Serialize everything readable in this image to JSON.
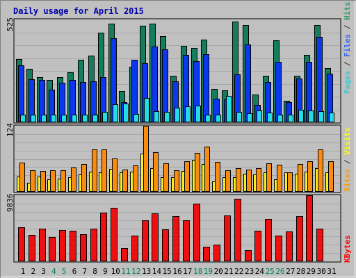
{
  "chart_data": {
    "type": "bar",
    "title": "Daily usage for April 2015",
    "days": [
      {
        "label": "1",
        "weekend": false
      },
      {
        "label": "2",
        "weekend": false
      },
      {
        "label": "3",
        "weekend": false
      },
      {
        "label": "4",
        "weekend": true
      },
      {
        "label": "5",
        "weekend": true
      },
      {
        "label": "6",
        "weekend": false
      },
      {
        "label": "7",
        "weekend": false
      },
      {
        "label": "8",
        "weekend": false
      },
      {
        "label": "9",
        "weekend": false
      },
      {
        "label": "10",
        "weekend": false
      },
      {
        "label": "11",
        "weekend": true
      },
      {
        "label": "12",
        "weekend": true
      },
      {
        "label": "13",
        "weekend": false
      },
      {
        "label": "14",
        "weekend": false
      },
      {
        "label": "15",
        "weekend": false
      },
      {
        "label": "16",
        "weekend": false
      },
      {
        "label": "17",
        "weekend": false
      },
      {
        "label": "18",
        "weekend": true
      },
      {
        "label": "19",
        "weekend": true
      },
      {
        "label": "20",
        "weekend": false
      },
      {
        "label": "21",
        "weekend": false
      },
      {
        "label": "22",
        "weekend": false
      },
      {
        "label": "23",
        "weekend": false
      },
      {
        "label": "24",
        "weekend": false
      },
      {
        "label": "25",
        "weekend": true
      },
      {
        "label": "26",
        "weekend": true
      },
      {
        "label": "27",
        "weekend": false
      },
      {
        "label": "28",
        "weekend": false
      },
      {
        "label": "29",
        "weekend": false
      },
      {
        "label": "30",
        "weekend": false
      },
      {
        "label": "31",
        "weekend": false
      }
    ],
    "panels": [
      {
        "ymax_label": "525",
        "ymax": 525,
        "legend": [
          {
            "text": "Pages",
            "color": "#33cccc"
          },
          {
            "text": " / ",
            "color": "#333333"
          },
          {
            "text": "Files",
            "color": "#3366ff"
          },
          {
            "text": " / ",
            "color": "#333333"
          },
          {
            "text": "Hits",
            "color": "#339966"
          }
        ],
        "series": [
          {
            "name": "Hits",
            "color": "#137d5d",
            "values": [
              324,
              274,
              231,
              216,
              231,
              256,
              318,
              340,
              459,
              505,
              159,
              284,
              492,
              505,
              440,
              236,
              390,
              381,
              421,
              172,
              163,
              513,
              497,
              143,
              237,
              418,
              109,
              239,
              343,
              497,
              276
            ]
          },
          {
            "name": "Files",
            "color": "#0b37ee",
            "values": [
              292,
              220,
              217,
              168,
              201,
              216,
              204,
              211,
              231,
              428,
              102,
              318,
              302,
              386,
              372,
              208,
              345,
              312,
              346,
              120,
              117,
              246,
              399,
              88,
              206,
              310,
              103,
              224,
              310,
              438,
              248
            ]
          },
          {
            "name": "Pages",
            "color": "#22dde8",
            "values": [
              40,
              40,
              40,
              40,
              40,
              40,
              40,
              40,
              54,
              92,
              96,
              43,
              124,
              57,
              53,
              73,
              83,
              86,
              40,
              40,
              136,
              52,
              45,
              60,
              48,
              40,
              40,
              63,
              60,
              56,
              50
            ]
          }
        ]
      },
      {
        "ymax_label": "124",
        "ymax": 124,
        "legend": [
          {
            "text": "Sites",
            "color": "#ff9900"
          },
          {
            "text": " / ",
            "color": "#333333"
          },
          {
            "text": "Visits",
            "color": "#ffff00"
          }
        ],
        "series": [
          {
            "name": "Visits",
            "color": "#f6f01b",
            "values": [
              29,
              17,
              29,
              23,
              25,
              28,
              33,
              38,
              37,
              43,
              36,
              38,
              72,
              44,
              27,
              27,
              39,
              60,
              52,
              20,
              28,
              28,
              34,
              33,
              37,
              23,
              37,
              34,
              38,
              44,
              36
            ]
          },
          {
            "name": "Sites",
            "color": "#f88b10",
            "values": [
              55,
              41,
              39,
              41,
              40,
              46,
              52,
              79,
              79,
              62,
              42,
              49,
              124,
              75,
              53,
              40,
              58,
              73,
              85,
              56,
              41,
              44,
              42,
              45,
              53,
              51,
              36,
              52,
              57,
              79,
              57
            ]
          }
        ]
      },
      {
        "ymax_label": "9836",
        "ymax": 9836,
        "legend": [
          {
            "text": "KBytes",
            "color": "#ff0000"
          }
        ],
        "series": [
          {
            "name": "KBytes",
            "color": "#ee1010",
            "values": [
              5095,
              3964,
              4857,
              3613,
              4639,
              4519,
              4043,
              4847,
              7282,
              7928,
              2011,
              3790,
              6151,
              7163,
              4738,
              6684,
              6094,
              8555,
              2159,
              2489,
              6852,
              9359,
              1611,
              4576,
              6289,
              3840,
              4403,
              6741,
              9836,
              4815,
              0
            ]
          }
        ]
      }
    ]
  }
}
